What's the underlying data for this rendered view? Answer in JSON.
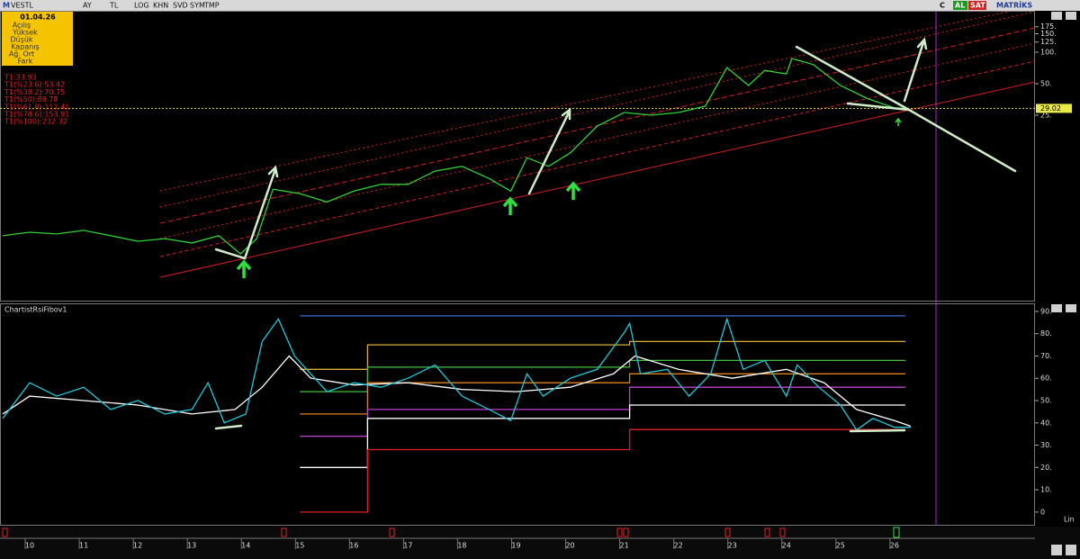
{
  "ui": {
    "logo": "M",
    "toolbar": [
      "VESTL",
      "AY",
      "TL",
      "LOG",
      "KHN",
      "SVD",
      "SYM",
      "TMP"
    ],
    "toolbar_right": [
      "C",
      "AL",
      "SAT",
      "MATRİKS"
    ],
    "info": {
      "date": "01.04.26",
      "fields": [
        "Açılış",
        "Yüksek",
        "Düşük",
        "Kapanış",
        "Ağ. Ort",
        "Fark"
      ]
    },
    "fib_levels": [
      "T1:33.93",
      "T1(%23.6):53.42",
      "T1(%38.2):70.75",
      "T1(%50):88.78",
      "T1(%61.8):111.41",
      "T1(%78.6):153.91",
      "T1(%100):232.32"
    ],
    "scale_mode": "Lin"
  },
  "chart_data": [
    {
      "type": "line",
      "log_scale": true,
      "color": "#2fd13a",
      "x": [
        9.5,
        10,
        10.5,
        11,
        11.5,
        12,
        12.5,
        13,
        13.5,
        13.9,
        14.2,
        14.5,
        15,
        15.5,
        16,
        16.5,
        17,
        17.5,
        18,
        18.5,
        18.9,
        19.2,
        19.6,
        20,
        20.5,
        21,
        21.5,
        22,
        22.5,
        22.9,
        23.3,
        23.6,
        24,
        24.1,
        24.5,
        25,
        25.5,
        26,
        26.2
      ],
      "values": [
        1.76,
        1.9,
        1.83,
        1.98,
        1.76,
        1.56,
        1.65,
        1.5,
        1.76,
        1.18,
        1.65,
        4.9,
        4.45,
        3.7,
        4.7,
        5.45,
        5.45,
        7.3,
        8.1,
        6.2,
        4.7,
        9.8,
        8.1,
        10.9,
        19.7,
        26.5,
        25,
        26.5,
        30.5,
        71.4,
        48,
        67,
        62,
        87,
        76,
        48,
        36,
        29.3,
        29.02
      ],
      "xlim": [
        9.45,
        28.6
      ],
      "ylim": [
        0.43,
        239
      ],
      "yticks": [
        {
          "value": 175,
          "label": "175."
        },
        {
          "value": 150,
          "label": "150."
        },
        {
          "value": 125,
          "label": "125."
        },
        {
          "value": 100,
          "label": "100."
        },
        {
          "value": 50,
          "label": "50."
        },
        {
          "value": 25,
          "label": "25."
        }
      ],
      "last_price": 29.02,
      "last_price_color": "#e8e84a"
    },
    {
      "type": "line",
      "title": "ChartistRsiFibov1",
      "series": [
        {
          "color": "#3a6fd8",
          "x": [
            15,
            26.2
          ],
          "values": [
            88,
            88
          ]
        },
        {
          "color": "#d8b030",
          "x": [
            15,
            16.25,
            16.25,
            21.1,
            21.1,
            26.2
          ],
          "values": [
            64,
            64,
            75,
            75,
            76.5,
            76.5
          ]
        },
        {
          "color": "#40c040",
          "x": [
            15,
            16.25,
            16.25,
            21.1,
            21.1,
            26.2
          ],
          "values": [
            54,
            54,
            65,
            65,
            68,
            68
          ]
        },
        {
          "color": "#e08020",
          "x": [
            15,
            16.25,
            16.25,
            21.1,
            21.1,
            26.2
          ],
          "values": [
            44,
            44,
            58,
            58,
            62,
            62
          ]
        },
        {
          "color": "#c040d0",
          "x": [
            15,
            16.25,
            16.25,
            21.1,
            21.1,
            26.2
          ],
          "values": [
            34,
            34,
            46,
            46,
            56,
            56
          ]
        },
        {
          "color": "#ffffff",
          "x": [
            15,
            16.25,
            16.25,
            21.1,
            21.1,
            26.2
          ],
          "values": [
            20,
            20,
            42,
            42,
            48,
            48
          ]
        },
        {
          "color": "#e02020",
          "x": [
            15,
            16.25,
            16.25,
            21.1,
            21.1,
            26.2
          ],
          "values": [
            0,
            0,
            28,
            28,
            37,
            37
          ]
        },
        {
          "color": "#ffffff",
          "x": [
            9.5,
            10,
            11,
            12,
            13,
            13.8,
            14.3,
            14.8,
            15.2,
            16,
            17,
            18,
            19,
            20,
            20.8,
            21.2,
            22,
            23,
            24,
            24.7,
            25.3,
            26,
            26.3
          ],
          "values": [
            44,
            52,
            50,
            48,
            44,
            46,
            56,
            70,
            60,
            57,
            58,
            55,
            54,
            56,
            62,
            70,
            64,
            60,
            64,
            58,
            46,
            41,
            38.5
          ]
        },
        {
          "color": "#1ec8d8",
          "x": [
            9.5,
            10,
            10.5,
            11,
            11.5,
            12,
            12.5,
            13,
            13.3,
            13.6,
            14,
            14.3,
            14.6,
            14.9,
            15.2,
            15.5,
            16,
            16.5,
            17,
            17.5,
            18,
            18.5,
            18.9,
            19.2,
            19.5,
            20,
            20.5,
            21,
            21.1,
            21.3,
            21.8,
            22.2,
            22.6,
            22.9,
            23.2,
            23.6,
            24,
            24.2,
            24.6,
            25,
            25.3,
            25.6,
            26,
            26.3
          ],
          "values": [
            42,
            58,
            52,
            56,
            46,
            50,
            44,
            46,
            58,
            40,
            44,
            76.5,
            86.6,
            70,
            62,
            54,
            58,
            56,
            60,
            66,
            52,
            46,
            41,
            62,
            52,
            60,
            64,
            80.5,
            84.6,
            62,
            64,
            52,
            62,
            86.6,
            64,
            68,
            52,
            66,
            56,
            48,
            36.8,
            42,
            38,
            38
          ]
        }
      ],
      "xlim": [
        9.45,
        28.6
      ],
      "ylim": [
        -5.3,
        93.2
      ],
      "xticks": [
        10,
        11,
        12,
        13,
        14,
        15,
        16,
        17,
        18,
        19,
        20,
        21,
        22,
        23,
        24,
        25,
        26
      ],
      "yticks": [
        {
          "value": 90,
          "label": "90."
        },
        {
          "value": 80,
          "label": "80."
        },
        {
          "value": 70,
          "label": "70."
        },
        {
          "value": 60,
          "label": "60."
        },
        {
          "value": 50,
          "label": "50."
        },
        {
          "value": 40,
          "label": "40."
        },
        {
          "value": 30,
          "label": "30."
        },
        {
          "value": 20,
          "label": "20."
        },
        {
          "value": 10,
          "label": "10."
        },
        0
      ]
    }
  ]
}
